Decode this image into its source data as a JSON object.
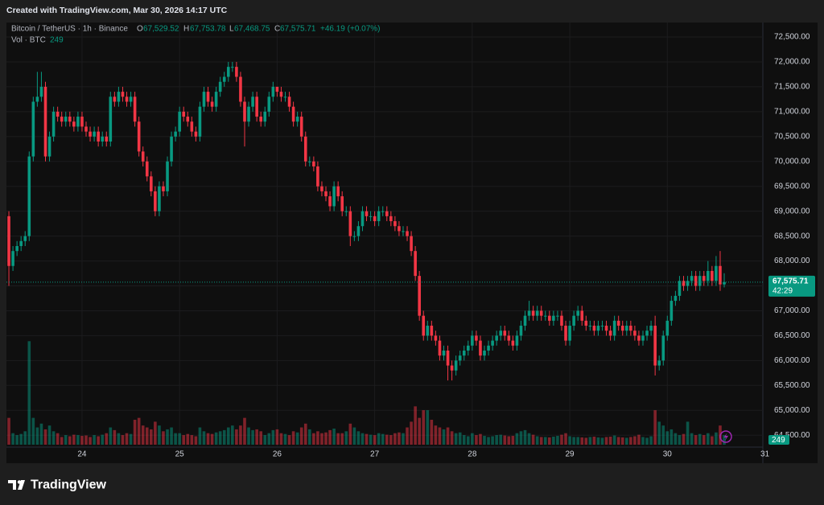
{
  "header": {
    "created": "Created with TradingView.com, Mar 30, 2026 14:17 UTC"
  },
  "footer": {
    "brand": "TradingView"
  },
  "chart_data": {
    "type": "candlestick",
    "title": "Bitcoin / TetherUS · 1h · Binance",
    "ohlc_letters": [
      "O",
      "H",
      "L",
      "C"
    ],
    "ohlc_labels": [
      "67,529.52",
      "67,753.78",
      "67,468.75",
      "67,575.71"
    ],
    "change_label": "+46.19 (+0.07%)",
    "volume_title": "Vol · BTC",
    "last_price_label": "67,575.71",
    "countdown": "42:29",
    "up_color": "#089981",
    "down_color": "#f23645",
    "grid": true,
    "xlim": [
      -0.6,
      185.5
    ],
    "xticks": [
      {
        "value": 18,
        "label": "24"
      },
      {
        "value": 42,
        "label": "25"
      },
      {
        "value": 66,
        "label": "26"
      },
      {
        "value": 90,
        "label": "27"
      },
      {
        "value": 114,
        "label": "28"
      },
      {
        "value": 138,
        "label": "29"
      },
      {
        "value": 162,
        "label": "30"
      },
      {
        "value": 186,
        "label": "31"
      }
    ],
    "ylim": [
      63938,
      72791
    ],
    "yticks": [
      {
        "value": 64500,
        "label": "64,500.00"
      },
      {
        "value": 65000,
        "label": "65,000.00"
      },
      {
        "value": 65500,
        "label": "65,500.00"
      },
      {
        "value": 66000,
        "label": "66,000.00"
      },
      {
        "value": 66500,
        "label": "66,500.00"
      },
      {
        "value": 67000,
        "label": "67,000.00"
      },
      {
        "value": 67500,
        "label": "67,500.00"
      },
      {
        "value": 68000,
        "label": "68,000.00"
      },
      {
        "value": 68500,
        "label": "68,500.00"
      },
      {
        "value": 69000,
        "label": "69,000.00"
      },
      {
        "value": 69500,
        "label": "69,500.00"
      },
      {
        "value": 70000,
        "label": "70,000.00"
      },
      {
        "value": 70500,
        "label": "70,500.00"
      },
      {
        "value": 71000,
        "label": "71,000.00"
      },
      {
        "value": 71500,
        "label": "71,500.00"
      },
      {
        "value": 72000,
        "label": "72,000.00"
      },
      {
        "value": 72500,
        "label": "72,500.00"
      }
    ],
    "volume_lim": [
      0,
      3000
    ],
    "open": [
      68900,
      67900,
      68200,
      68300,
      68400,
      68500,
      70100,
      71200,
      71300,
      71500,
      70100,
      70500,
      71000,
      70900,
      70800,
      70900,
      70800,
      70700,
      70900,
      70700,
      70600,
      70500,
      70600,
      70400,
      70500,
      70400,
      71300,
      71200,
      71400,
      71300,
      71200,
      71300,
      70800,
      70200,
      70000,
      69700,
      69400,
      69000,
      69500,
      69400,
      70000,
      70500,
      70600,
      71000,
      70900,
      70800,
      70600,
      70500,
      71100,
      71400,
      71200,
      71100,
      71400,
      71600,
      71700,
      71900,
      71900,
      71700,
      71200,
      70800,
      71100,
      71300,
      70900,
      70800,
      71000,
      71300,
      71500,
      71400,
      71300,
      71300,
      71100,
      70800,
      70900,
      70500,
      70000,
      70000,
      69900,
      69500,
      69400,
      69300,
      69100,
      69500,
      69300,
      69000,
      69000,
      68500,
      68500,
      68700,
      69000,
      68900,
      68900,
      68800,
      69000,
      69000,
      68900,
      68800,
      68700,
      68600,
      68600,
      68500,
      68200,
      67700,
      66900,
      66500,
      66700,
      66500,
      66400,
      66100,
      66200,
      65900,
      65800,
      66000,
      66100,
      66200,
      66300,
      66500,
      66400,
      66100,
      66200,
      66300,
      66400,
      66500,
      66600,
      66500,
      66400,
      66300,
      66500,
      66700,
      66900,
      67000,
      66900,
      67000,
      66900,
      66900,
      66800,
      66900,
      66900,
      66700,
      66400,
      66700,
      66900,
      67000,
      66800,
      66700,
      66700,
      66600,
      66700,
      66700,
      66600,
      66500,
      66800,
      66700,
      66600,
      66700,
      66600,
      66500,
      66400,
      66500,
      66600,
      66700,
      65900,
      66000,
      66500,
      66800,
      67200,
      67300,
      67600,
      67500,
      67600,
      67700,
      67500,
      67700,
      67600,
      67800,
      67600,
      67900,
      67529.52
    ],
    "high": [
      69000,
      68300,
      68400,
      68500,
      68600,
      70200,
      71300,
      71800,
      71800,
      71600,
      70600,
      71100,
      71100,
      71000,
      71000,
      71000,
      70900,
      71000,
      71000,
      70800,
      70700,
      70700,
      70700,
      70600,
      70600,
      71400,
      71400,
      71500,
      71500,
      71400,
      71400,
      71400,
      70900,
      70300,
      70100,
      69800,
      69500,
      69600,
      69600,
      70100,
      70600,
      70700,
      71100,
      71100,
      71000,
      70900,
      70700,
      71200,
      71500,
      71500,
      71300,
      71500,
      71700,
      71800,
      72000,
      72000,
      72000,
      71800,
      71300,
      71200,
      71400,
      71400,
      71000,
      71100,
      71400,
      71600,
      71500,
      71500,
      71400,
      71400,
      71200,
      71000,
      71000,
      70600,
      70100,
      70100,
      70000,
      69600,
      69500,
      69400,
      69600,
      69600,
      69400,
      69100,
      69100,
      68600,
      68800,
      69100,
      69100,
      69000,
      69000,
      69100,
      69100,
      69100,
      69000,
      68900,
      68800,
      68700,
      68700,
      68600,
      68300,
      67800,
      67000,
      66800,
      66800,
      66600,
      66500,
      66300,
      66300,
      66000,
      66100,
      66200,
      66300,
      66400,
      66600,
      66600,
      66500,
      66300,
      66400,
      66500,
      66600,
      66700,
      66700,
      66600,
      66500,
      66600,
      66800,
      67000,
      67200,
      67100,
      67100,
      67100,
      67000,
      67000,
      67000,
      67000,
      67000,
      66800,
      66800,
      67000,
      67100,
      67100,
      66900,
      66800,
      66800,
      66800,
      66800,
      66800,
      66700,
      66900,
      66900,
      66800,
      66800,
      66800,
      66700,
      66600,
      66600,
      66700,
      66800,
      66900,
      66100,
      66600,
      66900,
      67300,
      67400,
      67700,
      67700,
      67700,
      67800,
      67800,
      67800,
      67800,
      68000,
      67900,
      68100,
      68200,
      67753.78
    ],
    "low": [
      67500,
      67800,
      68100,
      68200,
      68300,
      68400,
      70000,
      71100,
      71200,
      70000,
      70000,
      70400,
      70800,
      70700,
      70700,
      70700,
      70600,
      70600,
      70600,
      70500,
      70400,
      70400,
      70300,
      70300,
      70300,
      70300,
      71100,
      71100,
      71200,
      71100,
      71100,
      70700,
      70100,
      69900,
      69600,
      69300,
      68900,
      68900,
      69300,
      69300,
      69900,
      70400,
      70500,
      70800,
      70700,
      70500,
      70400,
      70400,
      71000,
      71100,
      71000,
      71000,
      71300,
      71500,
      71600,
      71800,
      71600,
      71100,
      70300,
      70700,
      71000,
      70800,
      70700,
      70700,
      70900,
      71200,
      71300,
      71200,
      71200,
      71000,
      70700,
      70700,
      70400,
      69900,
      69900,
      69800,
      69400,
      69300,
      69200,
      69000,
      69000,
      69200,
      68900,
      68900,
      68300,
      68400,
      68400,
      68600,
      68800,
      68800,
      68700,
      68700,
      68900,
      68800,
      68700,
      68600,
      68500,
      68500,
      68400,
      68100,
      67600,
      66800,
      66400,
      66400,
      66400,
      66300,
      66000,
      66000,
      65600,
      65600,
      65700,
      65900,
      66000,
      66100,
      66200,
      66300,
      66000,
      66000,
      66100,
      66200,
      66300,
      66400,
      66400,
      66300,
      66200,
      66200,
      66400,
      66600,
      66800,
      66800,
      66800,
      66800,
      66800,
      66700,
      66700,
      66800,
      66600,
      66300,
      66300,
      66600,
      66800,
      66700,
      66600,
      66600,
      66500,
      66500,
      66600,
      66500,
      66400,
      66400,
      66600,
      66500,
      66500,
      66500,
      66400,
      66300,
      66300,
      66400,
      66500,
      65700,
      65800,
      65900,
      66400,
      66700,
      67100,
      67200,
      67400,
      67400,
      67500,
      67400,
      67400,
      67500,
      67500,
      67500,
      67500,
      67400,
      67468.75
    ],
    "close": [
      67900,
      68200,
      68300,
      68400,
      68500,
      70100,
      71200,
      71300,
      71500,
      70100,
      70500,
      71000,
      70900,
      70800,
      70900,
      70800,
      70700,
      70900,
      70700,
      70600,
      70500,
      70600,
      70400,
      70500,
      70400,
      71300,
      71200,
      71400,
      71300,
      71200,
      71300,
      70800,
      70200,
      70000,
      69700,
      69400,
      69000,
      69500,
      69400,
      70000,
      70500,
      70600,
      71000,
      70900,
      70800,
      70600,
      70500,
      71100,
      71400,
      71200,
      71100,
      71400,
      71600,
      71700,
      71900,
      71900,
      71700,
      71200,
      70800,
      71100,
      71300,
      70900,
      70800,
      71000,
      71300,
      71500,
      71400,
      71300,
      71300,
      71100,
      70800,
      70900,
      70500,
      70000,
      70000,
      69900,
      69500,
      69400,
      69300,
      69100,
      69500,
      69300,
      69000,
      69000,
      68500,
      68500,
      68700,
      69000,
      68900,
      68900,
      68800,
      69000,
      69000,
      68900,
      68800,
      68700,
      68600,
      68600,
      68500,
      68200,
      67700,
      66900,
      66500,
      66700,
      66500,
      66400,
      66100,
      66200,
      65900,
      65800,
      66000,
      66100,
      66200,
      66300,
      66500,
      66400,
      66100,
      66200,
      66300,
      66400,
      66500,
      66600,
      66500,
      66400,
      66300,
      66500,
      66700,
      66900,
      67000,
      66900,
      67000,
      66900,
      66900,
      66800,
      66900,
      66900,
      66700,
      66400,
      66700,
      66900,
      67000,
      66800,
      66700,
      66700,
      66600,
      66700,
      66700,
      66600,
      66500,
      66800,
      66700,
      66600,
      66700,
      66600,
      66500,
      66400,
      66500,
      66600,
      66700,
      65900,
      66000,
      66500,
      66800,
      67200,
      67300,
      67600,
      67500,
      67600,
      67700,
      67500,
      67700,
      67600,
      67800,
      67600,
      67900,
      67529.52,
      67575.71
    ],
    "volume": [
      700,
      300,
      250,
      280,
      350,
      2700,
      700,
      450,
      550,
      400,
      500,
      350,
      300,
      200,
      250,
      220,
      260,
      250,
      230,
      240,
      200,
      250,
      220,
      260,
      300,
      450,
      380,
      300,
      250,
      300,
      280,
      650,
      700,
      500,
      450,
      400,
      600,
      500,
      350,
      400,
      450,
      300,
      300,
      250,
      280,
      250,
      220,
      450,
      350,
      300,
      280,
      320,
      350,
      380,
      450,
      500,
      400,
      500,
      700,
      450,
      380,
      400,
      350,
      250,
      300,
      380,
      400,
      300,
      280,
      250,
      350,
      320,
      450,
      550,
      400,
      300,
      350,
      300,
      320,
      380,
      420,
      300,
      300,
      350,
      550,
      450,
      350,
      300,
      280,
      260,
      250,
      300,
      280,
      260,
      250,
      300,
      320,
      300,
      450,
      600,
      1000,
      700,
      900,
      900,
      650,
      500,
      450,
      400,
      450,
      350,
      300,
      320,
      250,
      220,
      300,
      250,
      280,
      230,
      200,
      220,
      250,
      260,
      240,
      220,
      230,
      300,
      350,
      380,
      300,
      260,
      220,
      200,
      200,
      190,
      210,
      230,
      260,
      300,
      220,
      200,
      200,
      190,
      180,
      200,
      210,
      190,
      180,
      200,
      210,
      240,
      200,
      190,
      180,
      200,
      220,
      260,
      200,
      180,
      220,
      900,
      600,
      500,
      350,
      400,
      300,
      250,
      280,
      600,
      300,
      250,
      280,
      250,
      300,
      220,
      320,
      500,
      249
    ]
  }
}
